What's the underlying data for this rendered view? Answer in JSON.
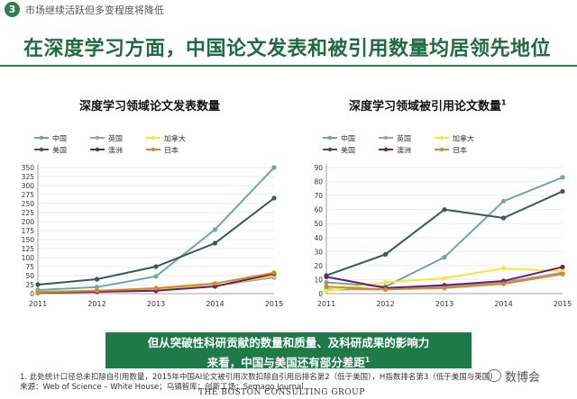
{
  "header": {
    "badge": "3",
    "section": "市场继续活跃但多变程度将降低",
    "headline": "在深度学习方面，中国论文发表和被引用数量均居领先地位"
  },
  "colors": {
    "中国": "#6fa8a0",
    "英国": "#a3a3a3",
    "加拿大": "#f2ea3a",
    "美国": "#3a5858",
    "澳洲": "#6b1f6b",
    "日本": "#d08a2a"
  },
  "chart_data": [
    {
      "type": "line",
      "title": "深度学习领域论文发表数量",
      "x": [
        "2011",
        "2012",
        "2013",
        "2014",
        "2015"
      ],
      "ylim": [
        0,
        350
      ],
      "yticks": [
        0,
        25,
        50,
        75,
        100,
        125,
        150,
        175,
        200,
        225,
        250,
        275,
        300,
        325,
        350
      ],
      "legend": [
        "中国",
        "英国",
        "加拿大",
        "美国",
        "澳洲",
        "日本"
      ],
      "series": [
        {
          "name": "中国",
          "values": [
            10,
            18,
            48,
            178,
            350
          ]
        },
        {
          "name": "英国",
          "values": [
            5,
            8,
            12,
            22,
            45
          ]
        },
        {
          "name": "加拿大",
          "values": [
            2,
            6,
            10,
            22,
            50
          ]
        },
        {
          "name": "美国",
          "values": [
            25,
            40,
            75,
            140,
            265
          ]
        },
        {
          "name": "澳洲",
          "values": [
            2,
            5,
            8,
            20,
            55
          ]
        },
        {
          "name": "日本",
          "values": [
            3,
            8,
            15,
            28,
            58
          ]
        }
      ]
    },
    {
      "type": "line",
      "title": "深度学习领域被引用论文数量",
      "title_sup": "1",
      "x": [
        "2011",
        "2012",
        "2013",
        "2014",
        "2015"
      ],
      "ylim": [
        0,
        90
      ],
      "yticks": [
        0,
        10,
        20,
        30,
        40,
        50,
        60,
        70,
        80,
        90
      ],
      "legend": [
        "中国",
        "英国",
        "加拿大",
        "美国",
        "澳洲",
        "日本"
      ],
      "series": [
        {
          "name": "中国",
          "values": [
            8,
            5,
            26,
            66,
            83
          ]
        },
        {
          "name": "英国",
          "values": [
            3,
            3,
            5,
            8,
            15
          ]
        },
        {
          "name": "加拿大",
          "values": [
            2,
            8,
            11,
            18,
            16
          ]
        },
        {
          "name": "美国",
          "values": [
            13,
            28,
            60,
            54,
            73
          ]
        },
        {
          "name": "澳洲",
          "values": [
            12,
            4,
            6,
            9,
            19
          ]
        },
        {
          "name": "日本",
          "values": [
            5,
            3,
            4,
            7,
            14
          ]
        }
      ]
    }
  ],
  "banner": {
    "line1": "但从突破性科研贡献的数量和质量、及科研成果的影响力",
    "line2": "来看，中国与美国还有部分差距",
    "line2_sup": "1"
  },
  "footnote": {
    "note": "1. 此处统计口径总未扣除自引用数量，2015年中国AI论文被引用次数扣除自引用后排名第2（低于美国），H指数排名第3（低于美国与英国）",
    "source": "来源：Web of Science – White House；乌镇智库；创新工场；Semago Journal"
  },
  "logo": "THE BOSTON CONSULTING GROUP",
  "watermark": "数博会"
}
